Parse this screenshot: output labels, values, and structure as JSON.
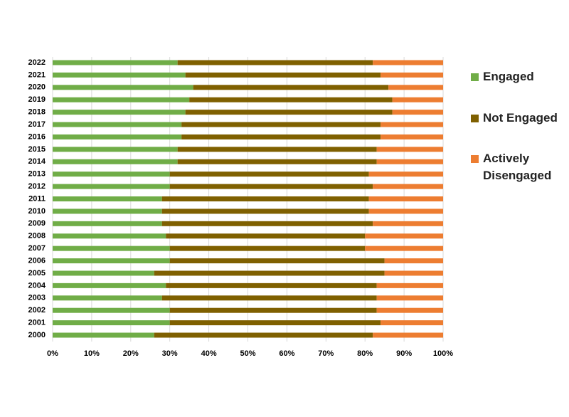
{
  "chart_data": {
    "type": "stacked-bar-horizontal",
    "categories": [
      "2000",
      "2001",
      "2002",
      "2003",
      "2004",
      "2005",
      "2006",
      "2007",
      "2008",
      "2009",
      "2010",
      "2011",
      "2012",
      "2013",
      "2014",
      "2015",
      "2016",
      "2017",
      "2018",
      "2019",
      "2020",
      "2021",
      "2022"
    ],
    "series": [
      {
        "name": "Engaged",
        "color": "#70ad47",
        "values": [
          26,
          30,
          30,
          28,
          29,
          26,
          30,
          30,
          29,
          28,
          28,
          28,
          30,
          30,
          32,
          32,
          33,
          33,
          34,
          35,
          36,
          34,
          32
        ]
      },
      {
        "name": "Not Engaged",
        "color": "#7f6000",
        "values": [
          56,
          54,
          53,
          55,
          54,
          59,
          55,
          50,
          51,
          54,
          53,
          53,
          52,
          51,
          51,
          51,
          51,
          51,
          53,
          52,
          50,
          50,
          50
        ]
      },
      {
        "name": "Actively Disengaged",
        "color": "#ed7d31",
        "values": [
          18,
          16,
          17,
          17,
          17,
          15,
          15,
          20,
          20,
          18,
          19,
          19,
          18,
          19,
          17,
          17,
          16,
          16,
          13,
          13,
          14,
          16,
          18
        ]
      }
    ],
    "xlim": [
      0,
      100
    ],
    "xticks": [
      {
        "value": 0,
        "label": "0%"
      },
      {
        "value": 10,
        "label": "10%"
      },
      {
        "value": 20,
        "label": "20%"
      },
      {
        "value": 30,
        "label": "30%"
      },
      {
        "value": 40,
        "label": "40%"
      },
      {
        "value": 50,
        "label": "50%"
      },
      {
        "value": 60,
        "label": "60%"
      },
      {
        "value": 70,
        "label": "70%"
      },
      {
        "value": 80,
        "label": "80%"
      },
      {
        "value": 90,
        "label": "90%"
      },
      {
        "value": 100,
        "label": "100%"
      }
    ],
    "grid": true,
    "legend": "right"
  }
}
